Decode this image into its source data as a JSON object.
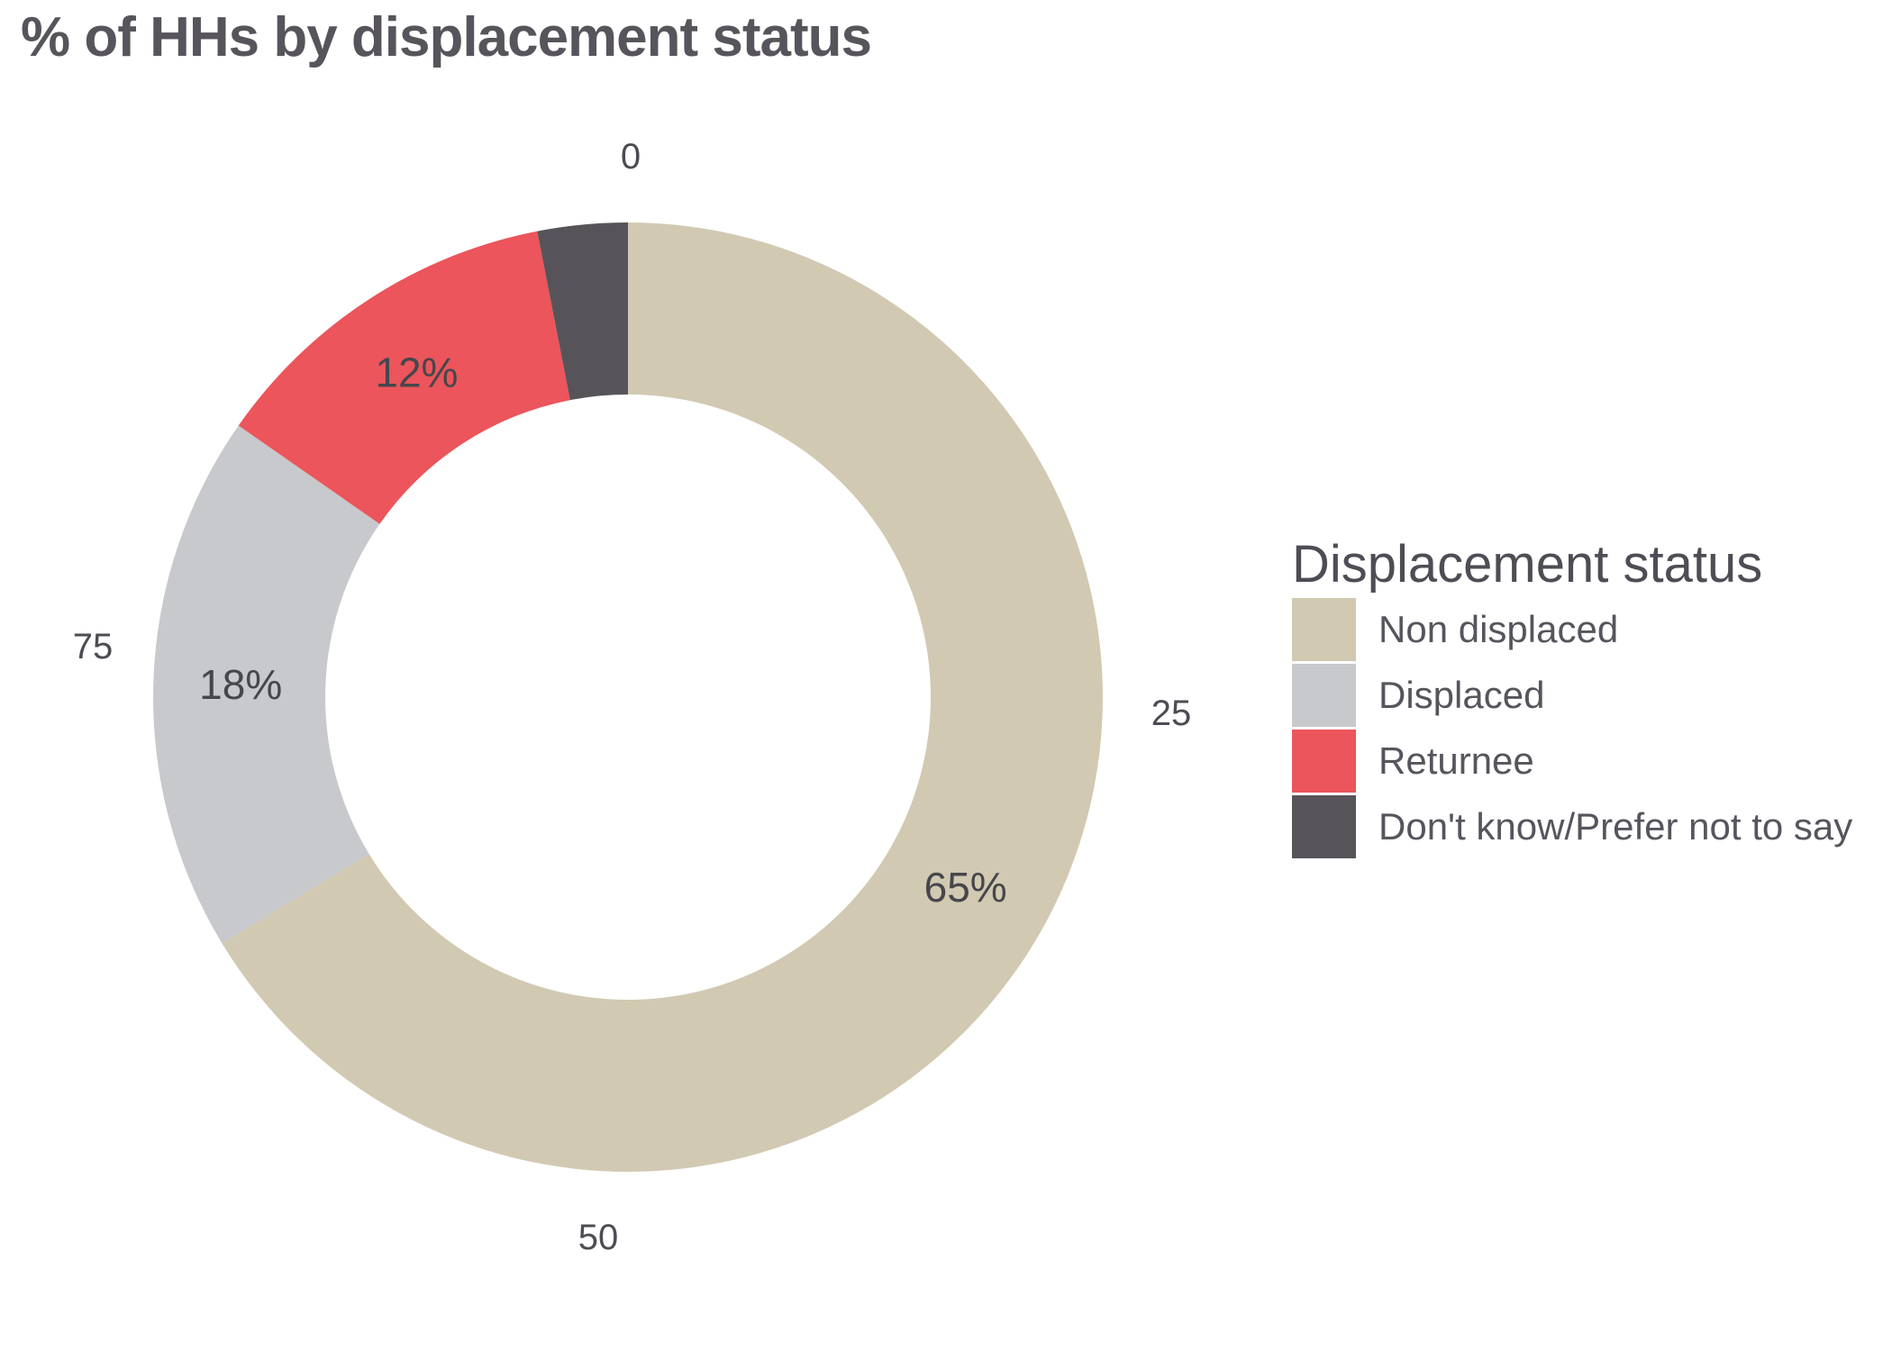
{
  "title": "% of HHs by displacement status",
  "chart_data": {
    "type": "pie",
    "subtype": "donut",
    "title": "% of HHs by displacement status",
    "categories": [
      "Non displaced",
      "Displaced",
      "Returnee",
      "Don't know/Prefer not to say"
    ],
    "values": [
      65,
      18,
      12,
      3
    ],
    "unit": "%",
    "colors": [
      "#D2C9B2",
      "#C7C9CC",
      "#EB555B",
      "#575459"
    ],
    "data_labels": [
      "65%",
      "18%",
      "12%",
      ""
    ],
    "axis_ticks": [
      "0",
      "25",
      "50",
      "75"
    ],
    "axis_range": [
      0,
      100
    ],
    "grid": false,
    "legend": {
      "title": "Displacement status",
      "position": "right",
      "items": [
        "Non displaced",
        "Displaced",
        "Returnee",
        "Don't know/Prefer not to say"
      ]
    }
  }
}
